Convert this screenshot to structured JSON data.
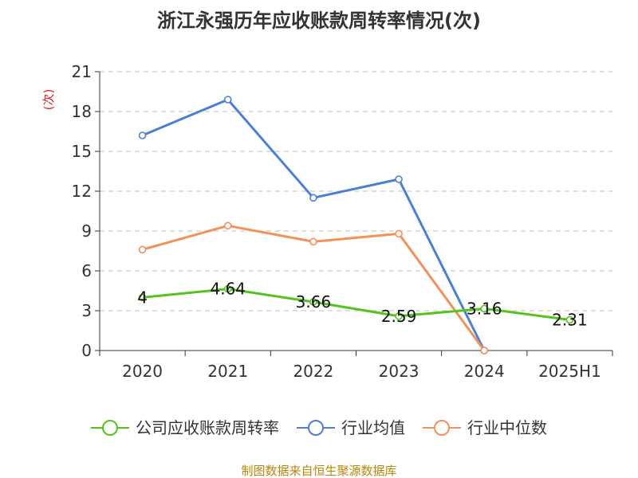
{
  "chart_data": {
    "type": "line",
    "title": "浙江永强历年应收账款周转率情况(次)",
    "ylabel": "(次)",
    "xlabel": "",
    "categories": [
      "2020",
      "2021",
      "2022",
      "2023",
      "2024",
      "2025H1"
    ],
    "ylim": [
      0,
      21
    ],
    "yticks": [
      0,
      3,
      6,
      9,
      12,
      15,
      18,
      21
    ],
    "grid": true,
    "legend_position": "bottom",
    "series": [
      {
        "name": "公司应收账款周转率",
        "color": "#52c41a",
        "values": [
          4,
          4.64,
          3.66,
          2.59,
          3.16,
          2.31
        ],
        "labels": [
          "4",
          "4.64",
          "3.66",
          "2.59",
          "3.16",
          "2.31"
        ]
      },
      {
        "name": "行业均值",
        "color": "#4a7fd8",
        "values": [
          16.2,
          18.9,
          11.5,
          12.9,
          0,
          null
        ]
      },
      {
        "name": "行业中位数",
        "color": "#f4905a",
        "values": [
          7.6,
          9.4,
          8.2,
          8.8,
          0,
          null
        ]
      }
    ]
  },
  "footer": {
    "source": "制图数据来自恒生聚源数据库"
  }
}
